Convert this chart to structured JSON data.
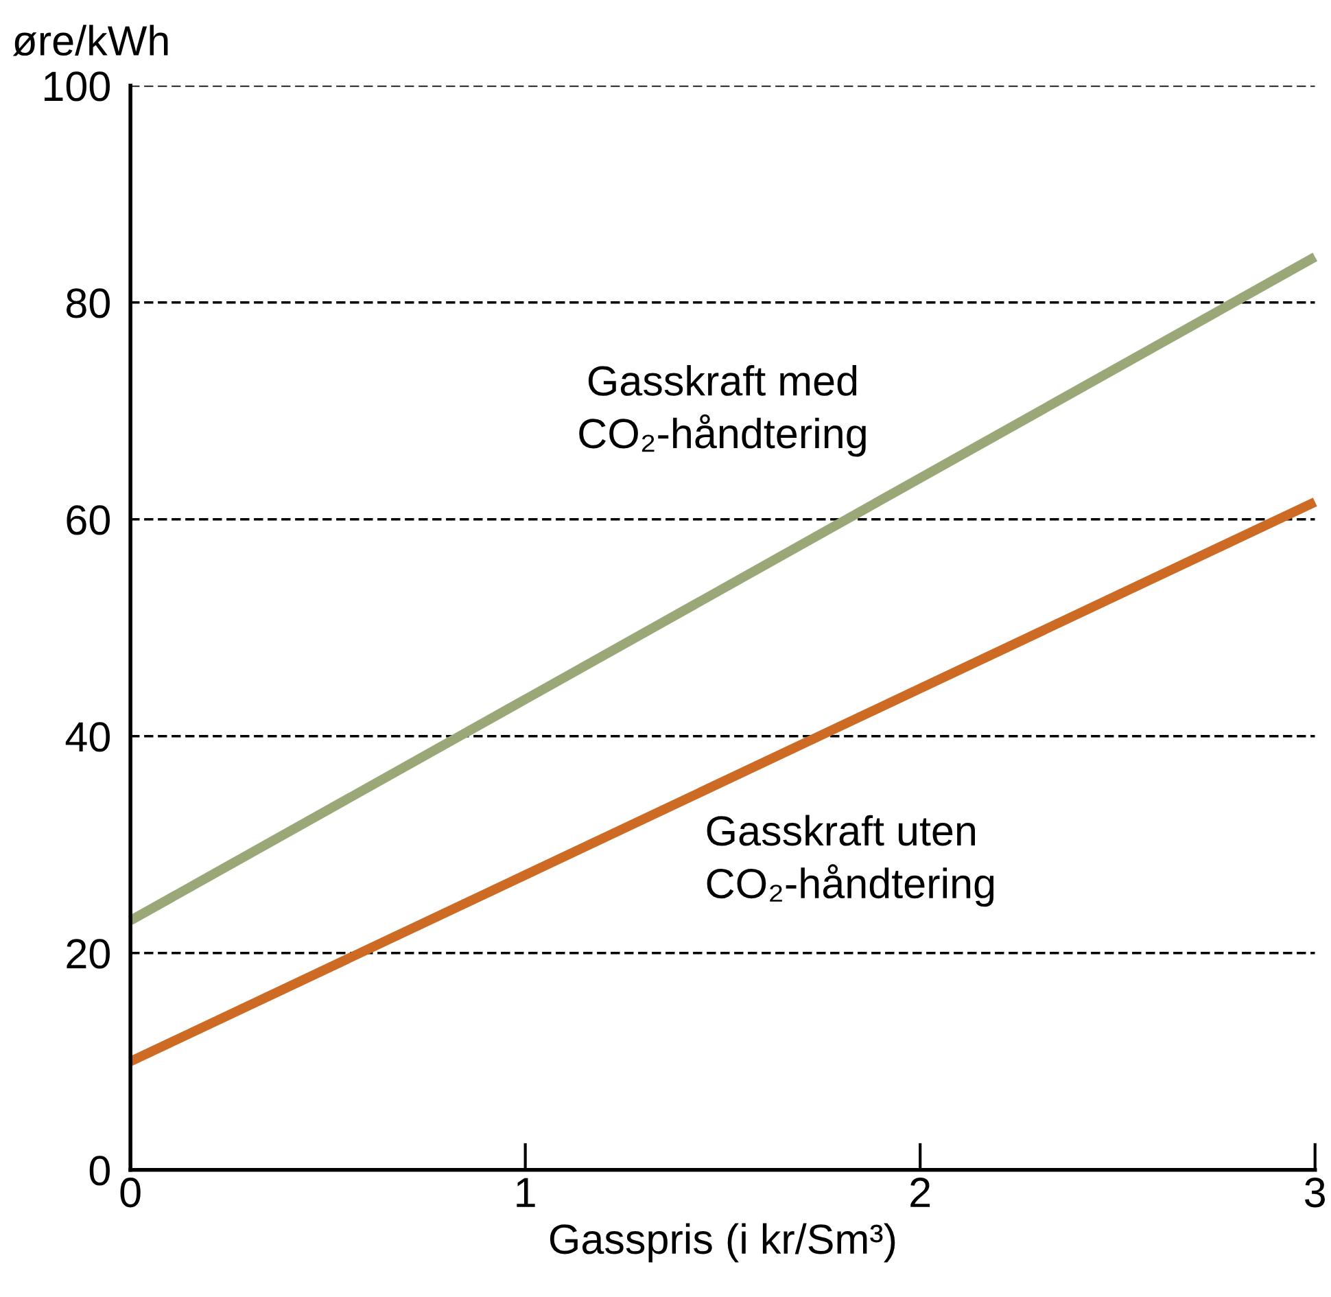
{
  "chart_data": {
    "type": "line",
    "xlabel": "Gasspris (i kr/Sm³)",
    "ylabel": "øre/kWh",
    "x": [
      0,
      3
    ],
    "series": [
      {
        "name": "Gasskraft med\nCO₂-håndtering",
        "color": "#9aa878",
        "values": [
          23,
          84.2
        ]
      },
      {
        "name": "Gasskraft uten\nCO₂-håndtering",
        "color": "#cd6a24",
        "values": [
          10,
          61.6
        ]
      }
    ],
    "xlim": [
      0,
      3
    ],
    "xticks": [
      0,
      1,
      2,
      3
    ],
    "ylim": [
      0,
      100
    ],
    "yticks": [
      0,
      20,
      40,
      60,
      80,
      100
    ],
    "grid": "y",
    "legend": false,
    "marker": "none",
    "line_style": "solid"
  }
}
